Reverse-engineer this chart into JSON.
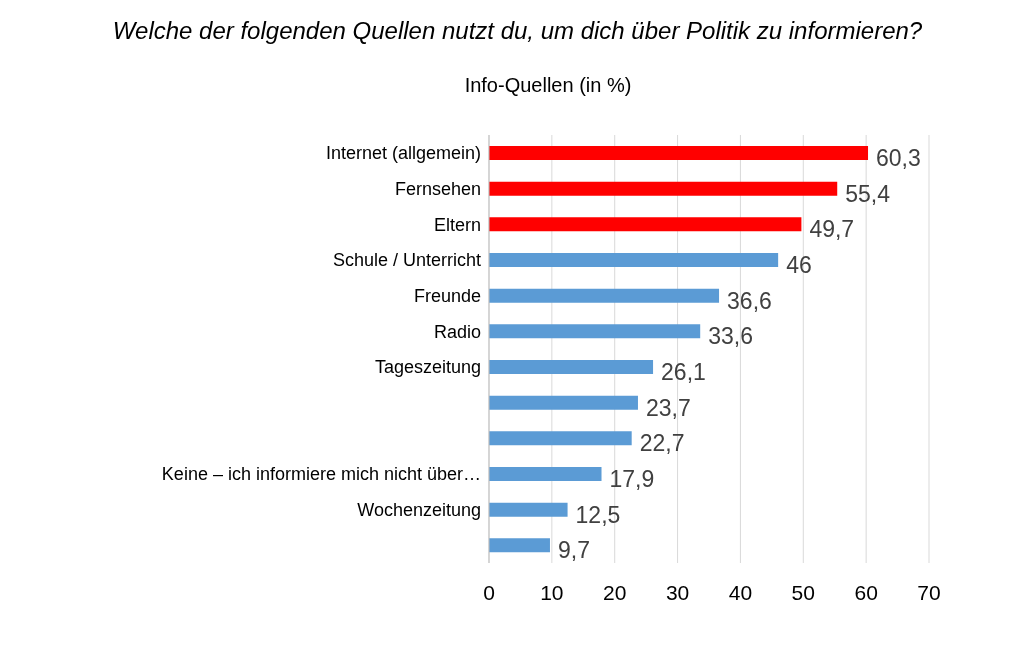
{
  "chart_data": {
    "type": "bar",
    "orientation": "horizontal",
    "title": "Welche der folgenden Quellen nutzt du, um dich über Politik zu informieren?",
    "subtitle": "Info-Quellen (in %)",
    "categories": [
      "Internet (allgemein)",
      "Fernsehen",
      "Eltern",
      "Schule / Unterricht",
      "Freunde",
      "Radio",
      "Tageszeitung",
      null,
      null,
      "Keine – ich informiere mich nicht über…",
      "Wochenzeitung",
      null
    ],
    "values": [
      60.3,
      55.4,
      49.7,
      46,
      36.6,
      33.6,
      26.1,
      23.7,
      22.7,
      17.9,
      12.5,
      9.7
    ],
    "value_labels": [
      "60,3",
      "55,4",
      "49,7",
      "46",
      "36,6",
      "33,6",
      "26,1",
      "23,7",
      "22,7",
      "17,9",
      "12,5",
      "9,7"
    ],
    "colors": [
      "#ff0000",
      "#ff0000",
      "#ff0000",
      "#5b9bd5",
      "#5b9bd5",
      "#5b9bd5",
      "#5b9bd5",
      "#5b9bd5",
      "#5b9bd5",
      "#5b9bd5",
      "#5b9bd5",
      "#5b9bd5"
    ],
    "xlim": [
      0,
      70
    ],
    "xticks": [
      0,
      10,
      20,
      30,
      40,
      50,
      60,
      70
    ],
    "grid": "x",
    "legend": false
  }
}
